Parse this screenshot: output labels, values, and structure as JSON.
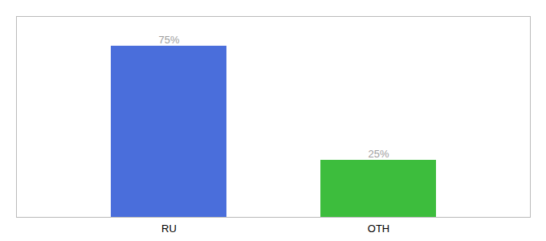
{
  "chart_data": {
    "type": "bar",
    "categories": [
      "RU",
      "OTH"
    ],
    "values": [
      75,
      25
    ],
    "value_labels": [
      "75%",
      "25%"
    ],
    "colors": [
      "#4a6edb",
      "#3dbd3d"
    ],
    "ylim": [
      0,
      88
    ],
    "data_labels": true,
    "tick_labels": "x"
  }
}
